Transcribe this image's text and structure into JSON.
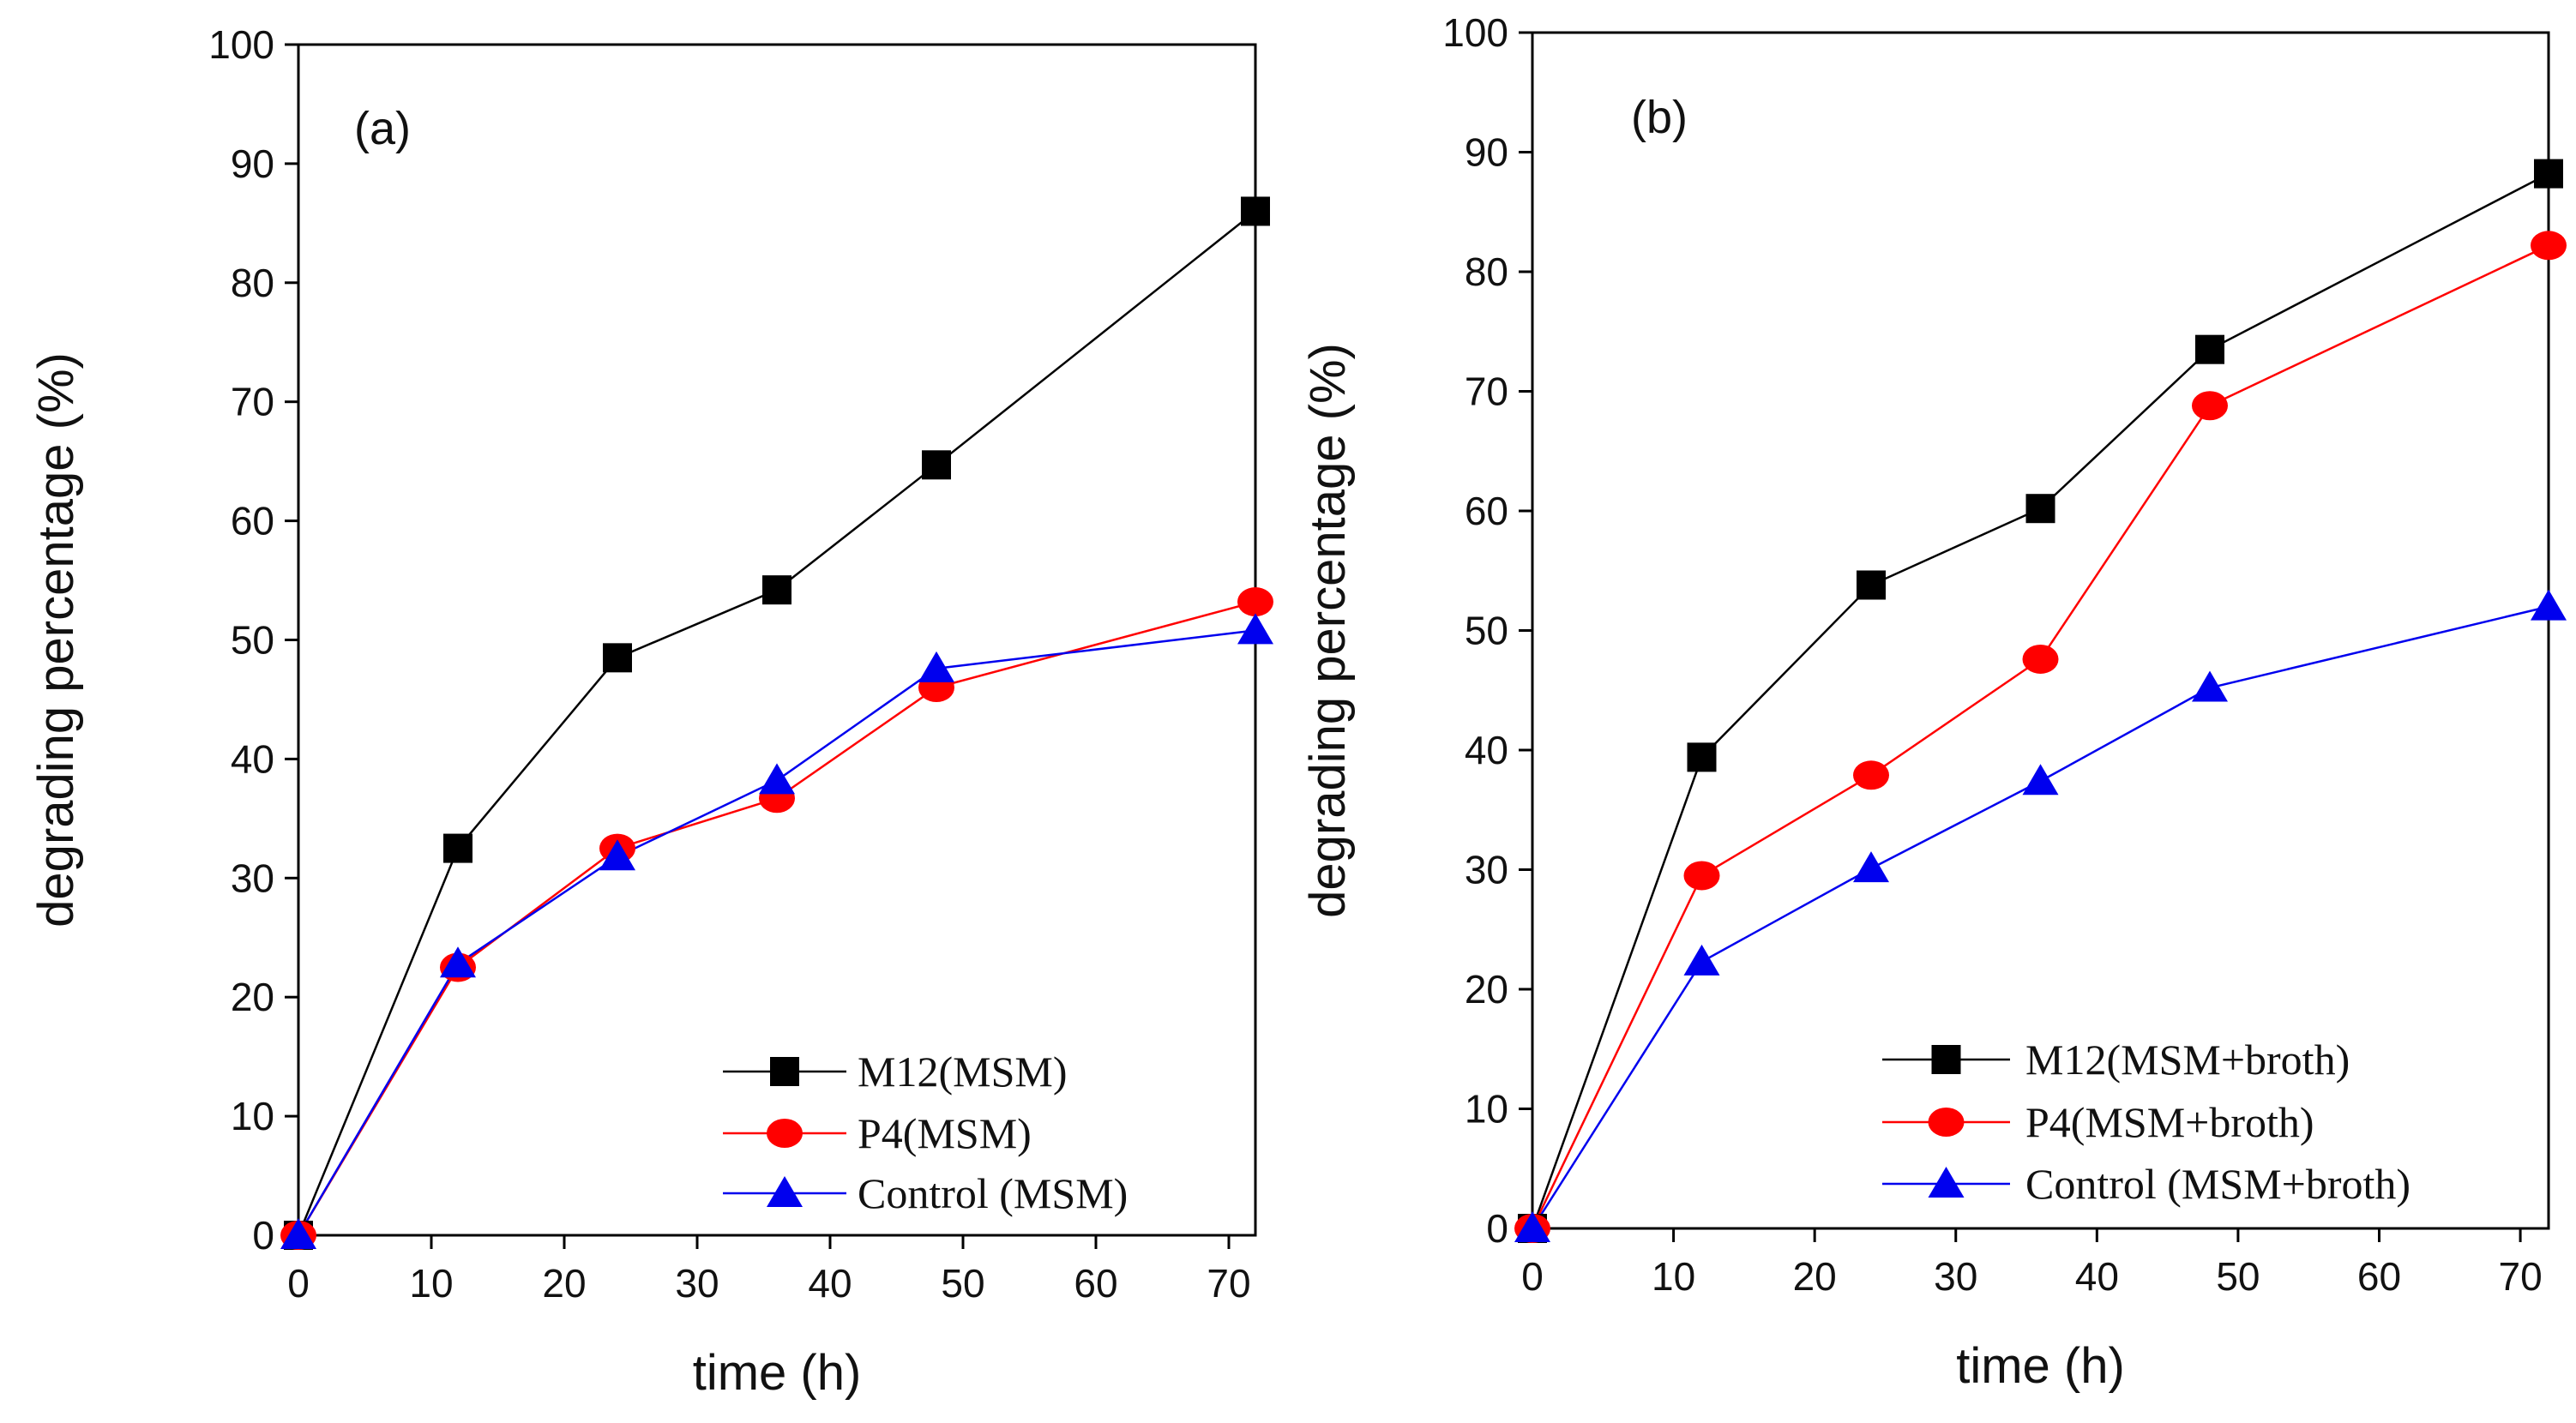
{
  "chart_data": [
    {
      "type": "line",
      "panel_label": "(a)",
      "xlabel": "time (h)",
      "ylabel": "degrading percentage (%)",
      "xlim": [
        0,
        72
      ],
      "ylim": [
        0,
        100
      ],
      "x_ticks": [
        "0",
        "10",
        "20",
        "30",
        "40",
        "50",
        "60",
        "70"
      ],
      "y_ticks": [
        "0",
        "10",
        "20",
        "30",
        "40",
        "50",
        "60",
        "70",
        "80",
        "90",
        "100"
      ],
      "legend_position": "bottom-right",
      "x": [
        0,
        12,
        24,
        36,
        48,
        72
      ],
      "series": [
        {
          "name": "M12(MSM)",
          "marker": "square",
          "color": "#000000",
          "values": [
            0,
            32.5,
            48.5,
            54.2,
            64.7,
            86.0
          ]
        },
        {
          "name": "P4(MSM)",
          "marker": "circle",
          "color": "#ff0000",
          "values": [
            0,
            22.5,
            32.5,
            36.7,
            46.0,
            53.2
          ]
        },
        {
          "name": "Control (MSM)",
          "marker": "triangle",
          "color": "#0000ee",
          "values": [
            0,
            22.8,
            31.8,
            38.2,
            47.6,
            50.8
          ]
        }
      ]
    },
    {
      "type": "line",
      "panel_label": "(b)",
      "xlabel": "time (h)",
      "ylabel": "degrading percentage (%)",
      "xlim": [
        0,
        72
      ],
      "ylim": [
        0,
        100
      ],
      "x_ticks": [
        "0",
        "10",
        "20",
        "30",
        "40",
        "50",
        "60",
        "70"
      ],
      "y_ticks": [
        "0",
        "10",
        "20",
        "30",
        "40",
        "50",
        "60",
        "70",
        "80",
        "90",
        "100"
      ],
      "legend_position": "bottom-right",
      "x": [
        0,
        12,
        24,
        36,
        48,
        72
      ],
      "series": [
        {
          "name": "M12(MSM+broth)",
          "marker": "square",
          "color": "#000000",
          "values": [
            0,
            39.4,
            53.8,
            60.2,
            73.5,
            88.2
          ]
        },
        {
          "name": "P4(MSM+broth)",
          "marker": "circle",
          "color": "#ff0000",
          "values": [
            0,
            29.5,
            37.9,
            47.6,
            68.8,
            82.2
          ]
        },
        {
          "name": "Control (MSM+broth)",
          "marker": "triangle",
          "color": "#0000ee",
          "values": [
            0,
            22.3,
            30.1,
            37.4,
            45.2,
            52.0
          ]
        }
      ]
    }
  ]
}
